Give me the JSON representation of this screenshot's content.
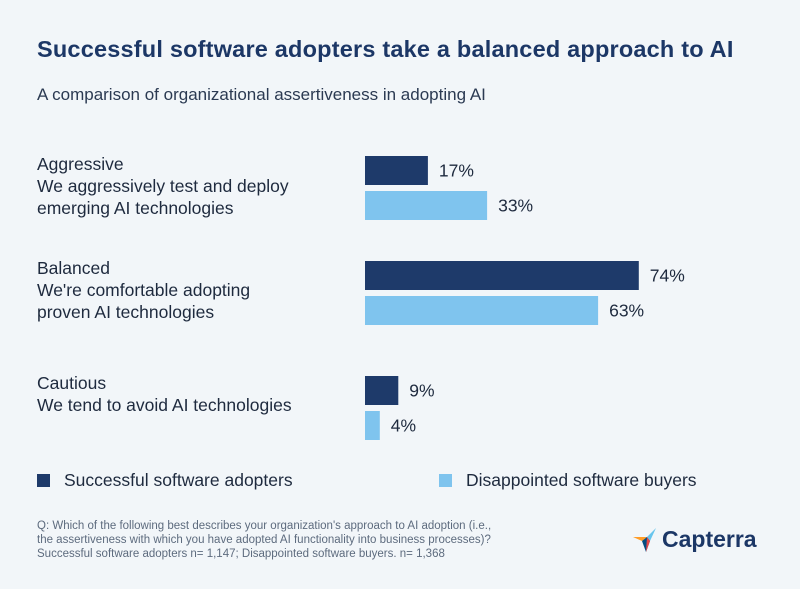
{
  "title": "Successful software adopters take a balanced approach to AI",
  "subtitle": "A comparison of organizational assertiveness in adopting AI",
  "colors": {
    "series1": "#1e3a6a",
    "series2": "#7fc4ee",
    "title": "#1c3766"
  },
  "chart_data": {
    "type": "bar",
    "orientation": "horizontal",
    "title": "Successful software adopters take a balanced approach to AI",
    "subtitle": "A comparison of organizational assertiveness in adopting AI",
    "xlim": [
      0,
      100
    ],
    "value_suffix": "%",
    "categories": [
      {
        "heading": "Aggressive",
        "lines": [
          "We aggressively test and deploy",
          "emerging AI technologies"
        ]
      },
      {
        "heading": "Balanced",
        "lines": [
          "We're comfortable adopting",
          "proven AI technologies"
        ]
      },
      {
        "heading": "Cautious",
        "lines": [
          "We tend to avoid AI technologies"
        ]
      }
    ],
    "series": [
      {
        "name": "Successful software adopters",
        "values": [
          17,
          74,
          9
        ]
      },
      {
        "name": "Disappointed software buyers",
        "values": [
          33,
          63,
          4
        ]
      }
    ],
    "legend": "bottom"
  },
  "footnote": [
    "Q: Which of the following best describes your organization's approach to AI adoption (i.e.,",
    "the assertiveness with which you have adopted AI functionality into business processes)?",
    "Successful software adopters n= 1,147; Disappointed software buyers. n= 1,368"
  ],
  "brand": {
    "name": "Capterra",
    "icon": "capterra-logo-icon"
  }
}
